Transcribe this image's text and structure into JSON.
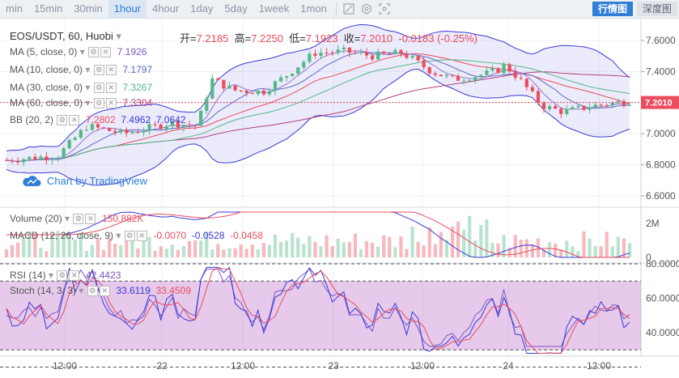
{
  "toolbar": {
    "timeframes": [
      "min",
      "15min",
      "30min",
      "1hour",
      "4hour",
      "1day",
      "5day",
      "1week",
      "1mon"
    ],
    "active_timeframe": "1hour",
    "btn_market": "行情图",
    "btn_depth": "深度图"
  },
  "header": {
    "symbol": "EOS/USDT, 60, Huobi",
    "open_label": "开=",
    "open": "7.2185",
    "high_label": "高=",
    "high": "7.2250",
    "low_label": "低=",
    "low": "7.1923",
    "close_label": "收=",
    "close": "7.2010",
    "change": "-0.0183 (-0.25%)"
  },
  "indicators": {
    "ma5": {
      "label": "MA (5, close, 0)",
      "value": "7.1926"
    },
    "ma10": {
      "label": "MA (10, close, 0)",
      "value": "7.1797"
    },
    "ma30": {
      "label": "MA (30, close, 0)",
      "value": "7.3267"
    },
    "ma60": {
      "label": "MA (60, close, 0)",
      "value": "7.3304"
    },
    "bb": {
      "label": "BB (20, 2)",
      "v1": "7.2802",
      "v2": "7.4962",
      "v3": "7.0642"
    },
    "volume": {
      "label": "Volume (20)",
      "value": "150.882K"
    },
    "macd": {
      "label": "MACD (12, 26, close, 9)",
      "v1": "-0.0070",
      "v2": "-0.0528",
      "v3": "-0.0458"
    },
    "rsi": {
      "label": "RSI (14)",
      "value": "42.4423"
    },
    "stoch": {
      "label": "Stoch (14, 3, 3)",
      "v1": "33.6119",
      "v2": "33.4509"
    }
  },
  "watermark": "Chart by TradingView",
  "price_axis": [
    "7.6000",
    "7.4000",
    "7.2000",
    "7.0000",
    "6.8000",
    "6.6000"
  ],
  "current_price": "7.2010",
  "volume_axis": [
    "2M",
    "0"
  ],
  "rsi_axis": [
    "80.0000",
    "60.0000",
    "40.0000"
  ],
  "time_axis": [
    "12:00",
    "22",
    "12:00",
    "23",
    "12:00",
    "24",
    "12:00"
  ],
  "colors": {
    "up": "#53b987",
    "down": "#eb4d5c",
    "bb": "#3a3ad6",
    "accent": "#2f7ed8"
  }
}
